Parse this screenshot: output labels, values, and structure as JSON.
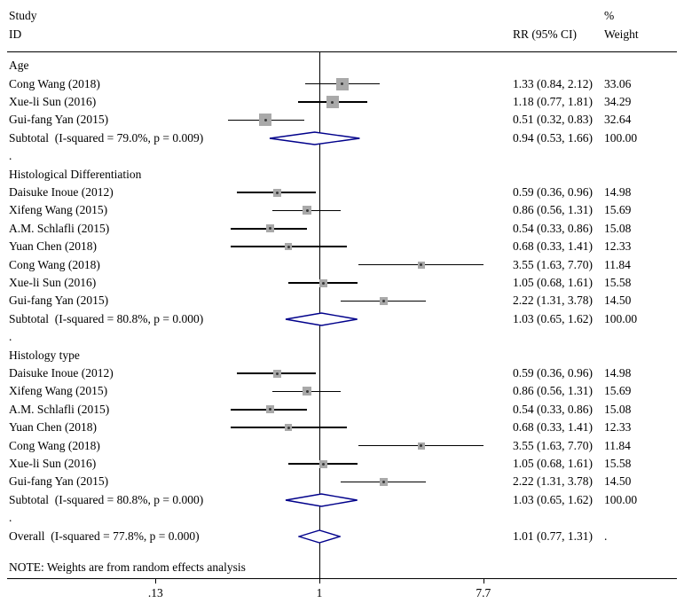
{
  "header": {
    "col_study_line1": "Study",
    "col_study_line2": "ID",
    "col_rr": "RR (95% CI)",
    "col_weight_line1": "%",
    "col_weight_line2": "Weight"
  },
  "note": "NOTE: Weights are from random effects analysis",
  "colors": {
    "diamond": "#00008B",
    "marker_fill": "#A9A9A9",
    "marker_dot": "#3a3a3a",
    "line": "#000000"
  },
  "chart_data": {
    "type": "forest",
    "effect_measure": "RR",
    "scale": "log10",
    "axis": {
      "ticks": [
        0.13,
        1,
        7.7
      ],
      "tick_labels": [
        ".13",
        "1",
        "7.7"
      ],
      "null_value": 1
    },
    "groups": [
      {
        "label": "Age",
        "studies": [
          {
            "label": "Cong Wang (2018)",
            "rr": 1.33,
            "ci_low": 0.84,
            "ci_high": 2.12,
            "rr_text": "1.33 (0.84, 2.12)",
            "weight": 33.06,
            "weight_text": "33.06"
          },
          {
            "label": "Xue-li Sun (2016)",
            "rr": 1.18,
            "ci_low": 0.77,
            "ci_high": 1.81,
            "rr_text": "1.18 (0.77, 1.81)",
            "weight": 34.29,
            "weight_text": "34.29"
          },
          {
            "label": "Gui-fang Yan (2015)",
            "rr": 0.51,
            "ci_low": 0.32,
            "ci_high": 0.83,
            "rr_text": "0.51 (0.32, 0.83)",
            "weight": 32.64,
            "weight_text": "32.64"
          }
        ],
        "subtotal": {
          "label": "Subtotal  (I-squared = 79.0%, p = 0.009)",
          "rr": 0.94,
          "ci_low": 0.53,
          "ci_high": 1.66,
          "rr_text": "0.94 (0.53, 1.66)",
          "weight_text": "100.00"
        }
      },
      {
        "label": "Histological Differentiation",
        "studies": [
          {
            "label": "Daisuke Inoue (2012)",
            "rr": 0.59,
            "ci_low": 0.36,
            "ci_high": 0.96,
            "rr_text": "0.59 (0.36, 0.96)",
            "weight": 14.98,
            "weight_text": "14.98"
          },
          {
            "label": "Xifeng Wang (2015)",
            "rr": 0.86,
            "ci_low": 0.56,
            "ci_high": 1.31,
            "rr_text": "0.86 (0.56, 1.31)",
            "weight": 15.69,
            "weight_text": "15.69"
          },
          {
            "label": "A.M. Schlafli (2015)",
            "rr": 0.54,
            "ci_low": 0.33,
            "ci_high": 0.86,
            "rr_text": "0.54 (0.33, 0.86)",
            "weight": 15.08,
            "weight_text": "15.08"
          },
          {
            "label": "Yuan Chen (2018)",
            "rr": 0.68,
            "ci_low": 0.33,
            "ci_high": 1.41,
            "rr_text": "0.68 (0.33, 1.41)",
            "weight": 12.33,
            "weight_text": "12.33"
          },
          {
            "label": "Cong Wang (2018)",
            "rr": 3.55,
            "ci_low": 1.63,
            "ci_high": 7.7,
            "rr_text": "3.55 (1.63, 7.70)",
            "weight": 11.84,
            "weight_text": "11.84"
          },
          {
            "label": "Xue-li Sun (2016)",
            "rr": 1.05,
            "ci_low": 0.68,
            "ci_high": 1.61,
            "rr_text": "1.05 (0.68, 1.61)",
            "weight": 15.58,
            "weight_text": "15.58"
          },
          {
            "label": "Gui-fang Yan (2015)",
            "rr": 2.22,
            "ci_low": 1.31,
            "ci_high": 3.78,
            "rr_text": "2.22 (1.31, 3.78)",
            "weight": 14.5,
            "weight_text": "14.50"
          }
        ],
        "subtotal": {
          "label": "Subtotal  (I-squared = 80.8%, p = 0.000)",
          "rr": 1.03,
          "ci_low": 0.65,
          "ci_high": 1.62,
          "rr_text": "1.03 (0.65, 1.62)",
          "weight_text": "100.00"
        }
      },
      {
        "label": "Histology type",
        "studies": [
          {
            "label": "Daisuke Inoue (2012)",
            "rr": 0.59,
            "ci_low": 0.36,
            "ci_high": 0.96,
            "rr_text": "0.59 (0.36, 0.96)",
            "weight": 14.98,
            "weight_text": "14.98"
          },
          {
            "label": "Xifeng Wang (2015)",
            "rr": 0.86,
            "ci_low": 0.56,
            "ci_high": 1.31,
            "rr_text": "0.86 (0.56, 1.31)",
            "weight": 15.69,
            "weight_text": "15.69"
          },
          {
            "label": "A.M. Schlafli (2015)",
            "rr": 0.54,
            "ci_low": 0.33,
            "ci_high": 0.86,
            "rr_text": "0.54 (0.33, 0.86)",
            "weight": 15.08,
            "weight_text": "15.08"
          },
          {
            "label": "Yuan Chen (2018)",
            "rr": 0.68,
            "ci_low": 0.33,
            "ci_high": 1.41,
            "rr_text": "0.68 (0.33, 1.41)",
            "weight": 12.33,
            "weight_text": "12.33"
          },
          {
            "label": "Cong Wang (2018)",
            "rr": 3.55,
            "ci_low": 1.63,
            "ci_high": 7.7,
            "rr_text": "3.55 (1.63, 7.70)",
            "weight": 11.84,
            "weight_text": "11.84"
          },
          {
            "label": "Xue-li Sun (2016)",
            "rr": 1.05,
            "ci_low": 0.68,
            "ci_high": 1.61,
            "rr_text": "1.05 (0.68, 1.61)",
            "weight": 15.58,
            "weight_text": "15.58"
          },
          {
            "label": "Gui-fang Yan (2015)",
            "rr": 2.22,
            "ci_low": 1.31,
            "ci_high": 3.78,
            "rr_text": "2.22 (1.31, 3.78)",
            "weight": 14.5,
            "weight_text": "14.50"
          }
        ],
        "subtotal": {
          "label": "Subtotal  (I-squared = 80.8%, p = 0.000)",
          "rr": 1.03,
          "ci_low": 0.65,
          "ci_high": 1.62,
          "rr_text": "1.03 (0.65, 1.62)",
          "weight_text": "100.00"
        }
      }
    ],
    "overall": {
      "label": "Overall  (I-squared = 77.8%, p = 0.000)",
      "rr": 1.01,
      "ci_low": 0.77,
      "ci_high": 1.31,
      "rr_text": "1.01 (0.77, 1.31)",
      "weight_text": "."
    }
  }
}
